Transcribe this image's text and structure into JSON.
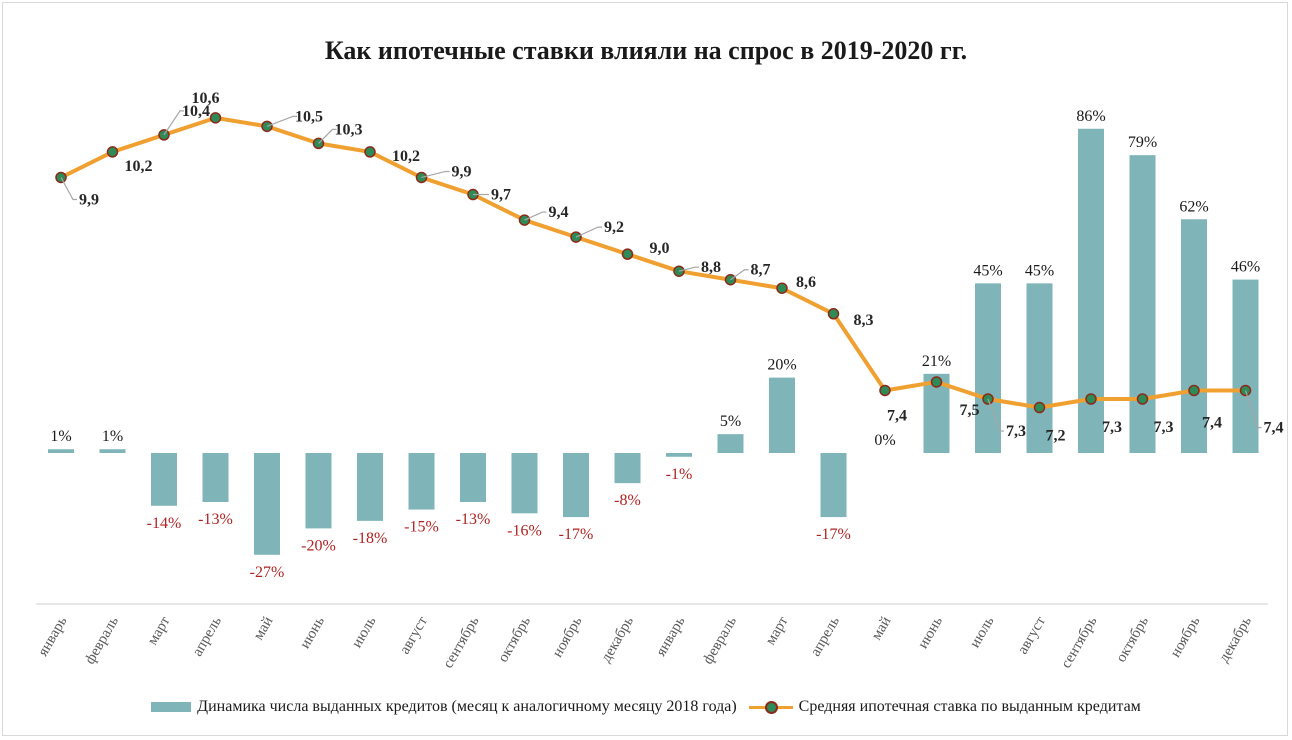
{
  "chart_data": {
    "type": "bar",
    "title": "Как ипотечные ставки влияли на спрос в 2019-2020 гг.",
    "categories": [
      "январь",
      "февраль",
      "март",
      "апрель",
      "май",
      "июнь",
      "июль",
      "август",
      "сентябрь",
      "октябрь",
      "ноябрь",
      "декабрь",
      "январь",
      "февраль",
      "март",
      "апрель",
      "май",
      "июнь",
      "июль",
      "август",
      "сентябрь",
      "октябрь",
      "ноябрь",
      "декабрь"
    ],
    "series": [
      {
        "name": "Динамика числа выданных кредитов (месяц к аналогичному месяцу 2018 года)",
        "type": "bar",
        "values": [
          1,
          1,
          -14,
          -13,
          -27,
          -20,
          -18,
          -15,
          -13,
          -16,
          -17,
          -8,
          -1,
          5,
          20,
          -17,
          0,
          21,
          45,
          45,
          86,
          79,
          62,
          46
        ],
        "labels": [
          "1%",
          "1%",
          "-14%",
          "-13%",
          "-27%",
          "-20%",
          "-18%",
          "-15%",
          "-13%",
          "-16%",
          "-17%",
          "-8%",
          "-1%",
          "5%",
          "20%",
          "-17%",
          "0%",
          "21%",
          "45%",
          "45%",
          "86%",
          "79%",
          "62%",
          "46%"
        ]
      },
      {
        "name": "Средняя ипотечная ставка по выданным кредитам",
        "type": "line",
        "values": [
          9.9,
          10.2,
          10.4,
          10.6,
          10.5,
          10.3,
          10.2,
          9.9,
          9.7,
          9.4,
          9.2,
          9.0,
          8.8,
          8.7,
          8.6,
          8.3,
          7.4,
          7.5,
          7.3,
          7.2,
          7.3,
          7.3,
          7.4,
          7.4
        ],
        "labels": [
          "9,9",
          "10,2",
          "10,4",
          "10,6",
          "10,5",
          "10,3",
          "10,2",
          "9,9",
          "9,7",
          "9,4",
          "9,2",
          "9,0",
          "8,8",
          "8,7",
          "8,6",
          "8,3",
          "7,4",
          "7,5",
          "7,3",
          "7,2",
          "7,3",
          "7,3",
          "7,4",
          "7,4"
        ]
      }
    ],
    "legend": "bottom",
    "grid": false
  },
  "colors": {
    "bar": "#7fb5b9",
    "line": "#f0a030",
    "marker_fill": "#2e8b57",
    "marker_edge": "#8b2a1a",
    "negative_label": "#b22222",
    "positive_label": "#1a1a1a",
    "axis": "#cfcfcf",
    "leader": "#a6a6a6"
  }
}
